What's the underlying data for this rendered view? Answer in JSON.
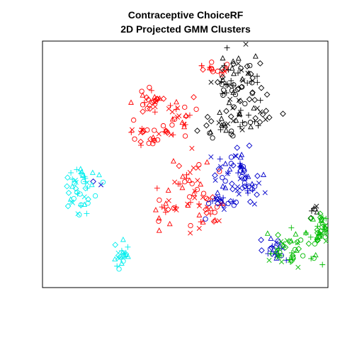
{
  "chart_data": {
    "type": "scatter",
    "title": "Contraceptive ChoiceRF",
    "subtitle": "2D Projected GMM Clusters",
    "xlabel": "",
    "ylabel": "",
    "xlim": [
      0,
      100
    ],
    "ylim": [
      0,
      100
    ],
    "axes_visible": false,
    "grid": false,
    "legend": "none",
    "colors": {
      "red": "#ff0000",
      "black": "#000000",
      "blue": "#0000cc",
      "cyan": "#00eeee",
      "green": "#00bb00"
    },
    "series": [
      {
        "color": "red",
        "clusters": [
          {
            "cx": 62,
            "cy": 93,
            "sx": 3,
            "sy": 2,
            "n": 16
          },
          {
            "cx": 36,
            "cy": 78,
            "sx": 3,
            "sy": 2.5,
            "n": 22
          },
          {
            "cx": 48,
            "cy": 72,
            "sx": 4,
            "sy": 3,
            "n": 22
          },
          {
            "cx": 38,
            "cy": 64,
            "sx": 6,
            "sy": 3,
            "n": 30
          },
          {
            "cx": 50,
            "cy": 43,
            "sx": 4,
            "sy": 5,
            "n": 30
          },
          {
            "cx": 46,
            "cy": 31,
            "sx": 5,
            "sy": 4,
            "n": 22
          },
          {
            "cx": 59,
            "cy": 30,
            "sx": 3,
            "sy": 5,
            "n": 20
          }
        ],
        "markers": [
          "circle",
          "triangle",
          "plus",
          "cross",
          "diamond"
        ]
      },
      {
        "color": "black",
        "clusters": [
          {
            "cx": 71,
            "cy": 86,
            "sx": 5,
            "sy": 7,
            "n": 70
          },
          {
            "cx": 64,
            "cy": 67,
            "sx": 5,
            "sy": 4,
            "n": 24
          },
          {
            "cx": 77,
            "cy": 71,
            "sx": 4,
            "sy": 3,
            "n": 20
          },
          {
            "cx": 98,
            "cy": 29,
            "sx": 1.2,
            "sy": 1.5,
            "n": 6
          }
        ],
        "markers": [
          "circle",
          "triangle",
          "plus",
          "cross",
          "diamond"
        ]
      },
      {
        "color": "blue",
        "clusters": [
          {
            "cx": 69,
            "cy": 48,
            "sx": 4,
            "sy": 5,
            "n": 38
          },
          {
            "cx": 73,
            "cy": 39,
            "sx": 3,
            "sy": 4,
            "n": 26
          },
          {
            "cx": 63,
            "cy": 34,
            "sx": 3,
            "sy": 3,
            "n": 18
          },
          {
            "cx": 84,
            "cy": 14,
            "sx": 3,
            "sy": 3,
            "n": 20
          },
          {
            "cx": 17,
            "cy": 42,
            "sx": 0.8,
            "sy": 0.8,
            "n": 2
          }
        ],
        "markers": [
          "circle",
          "triangle",
          "plus",
          "cross",
          "diamond"
        ]
      },
      {
        "color": "cyan",
        "clusters": [
          {
            "cx": 10,
            "cy": 40,
            "sx": 3,
            "sy": 5,
            "n": 45
          },
          {
            "cx": 26,
            "cy": 10,
            "sx": 1.5,
            "sy": 3,
            "n": 20
          }
        ],
        "markers": [
          "circle",
          "triangle",
          "plus",
          "cross",
          "diamond"
        ]
      },
      {
        "color": "green",
        "clusters": [
          {
            "cx": 91,
            "cy": 12,
            "sx": 5,
            "sy": 4,
            "n": 45
          },
          {
            "cx": 101,
            "cy": 21,
            "sx": 2,
            "sy": 4,
            "n": 35
          }
        ],
        "markers": [
          "circle",
          "triangle",
          "plus",
          "cross",
          "diamond"
        ]
      }
    ]
  }
}
